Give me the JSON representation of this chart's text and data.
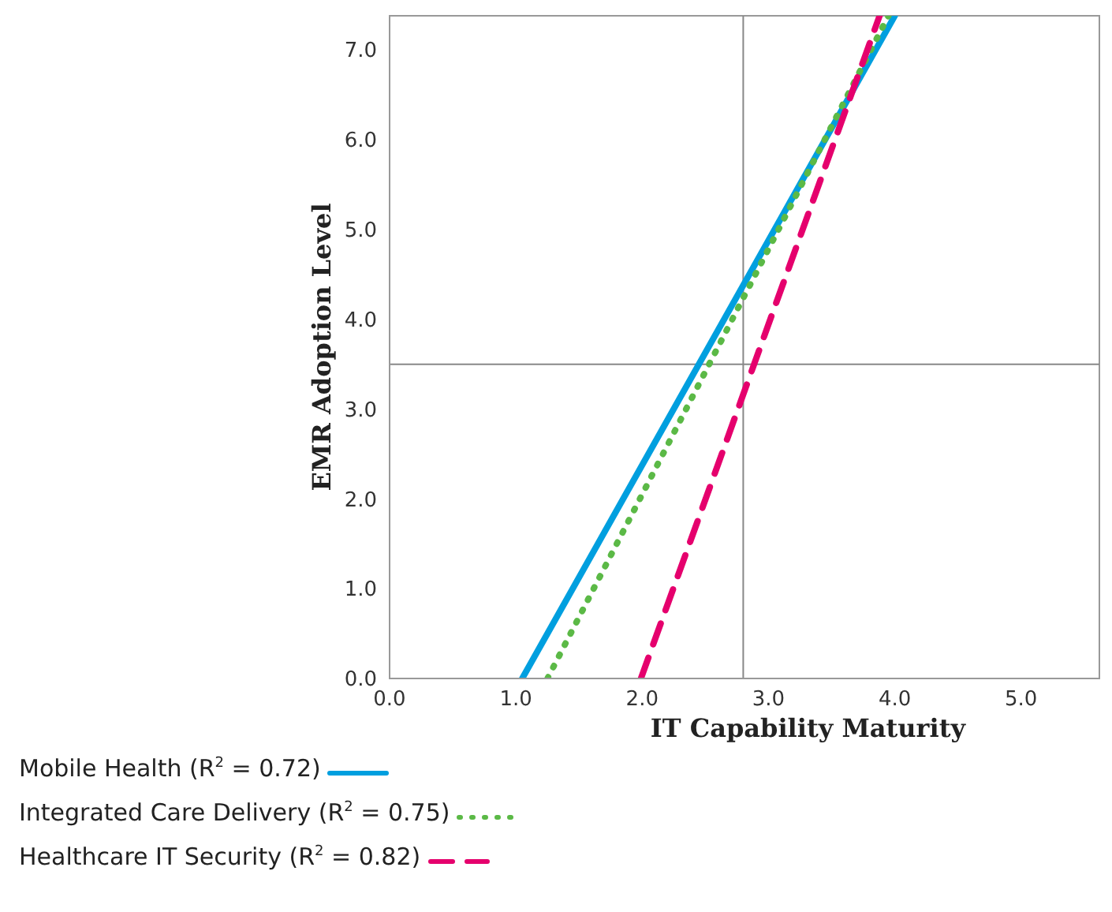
{
  "chart_data": {
    "type": "line",
    "xlabel": "IT Capability Maturity",
    "ylabel": "EMR Adoption Level",
    "series": [
      {
        "name": "Mobile Health (R$^{2}$ = 0.72)",
        "color": "#009fdf",
        "x": [
          1.05,
          4.0
        ],
        "values": [
          0,
          7.38
        ],
        "line_style": "solid"
      },
      {
        "name": "Integrated Care Delivery (R$^{2}$ = 0.75)",
        "color": "#5bb946",
        "x": [
          1.25,
          3.95
        ],
        "values": [
          0,
          7.38
        ],
        "line_style": "dotted"
      },
      {
        "name": "Healthcare IT Security (R$^{2}$ = 0.82)",
        "color": "#e5006d",
        "x": [
          1.99,
          3.88
        ],
        "values": [
          0,
          7.38
        ],
        "line_style": "dashed"
      }
    ],
    "xlim": [
      0,
      5.62
    ],
    "xticks": [
      {
        "value": 0,
        "label": "0.0"
      },
      {
        "value": 1,
        "label": "1.0"
      },
      {
        "value": 2,
        "label": "2.0"
      },
      {
        "value": 3,
        "label": "3.0"
      },
      {
        "value": 4,
        "label": "4.0"
      },
      {
        "value": 5,
        "label": "5.0"
      }
    ],
    "ylim": [
      0,
      7.38
    ],
    "yticks": [
      {
        "value": 0,
        "label": "0.0"
      },
      {
        "value": 1,
        "label": "1.0"
      },
      {
        "value": 2,
        "label": "2.0"
      },
      {
        "value": 3,
        "label": "3.0"
      },
      {
        "value": 4,
        "label": "4.0"
      },
      {
        "value": 5,
        "label": "5.0"
      },
      {
        "value": 6,
        "label": "6.0"
      },
      {
        "value": 7,
        "label": "7.0"
      }
    ],
    "ref_lines": [
      {
        "axis": "x",
        "value": 2.8,
        "color": "#888888"
      },
      {
        "axis": "y",
        "value": 3.5,
        "color": "#888888"
      }
    ],
    "grid": false,
    "marker": "none",
    "legend": "bottom left"
  }
}
